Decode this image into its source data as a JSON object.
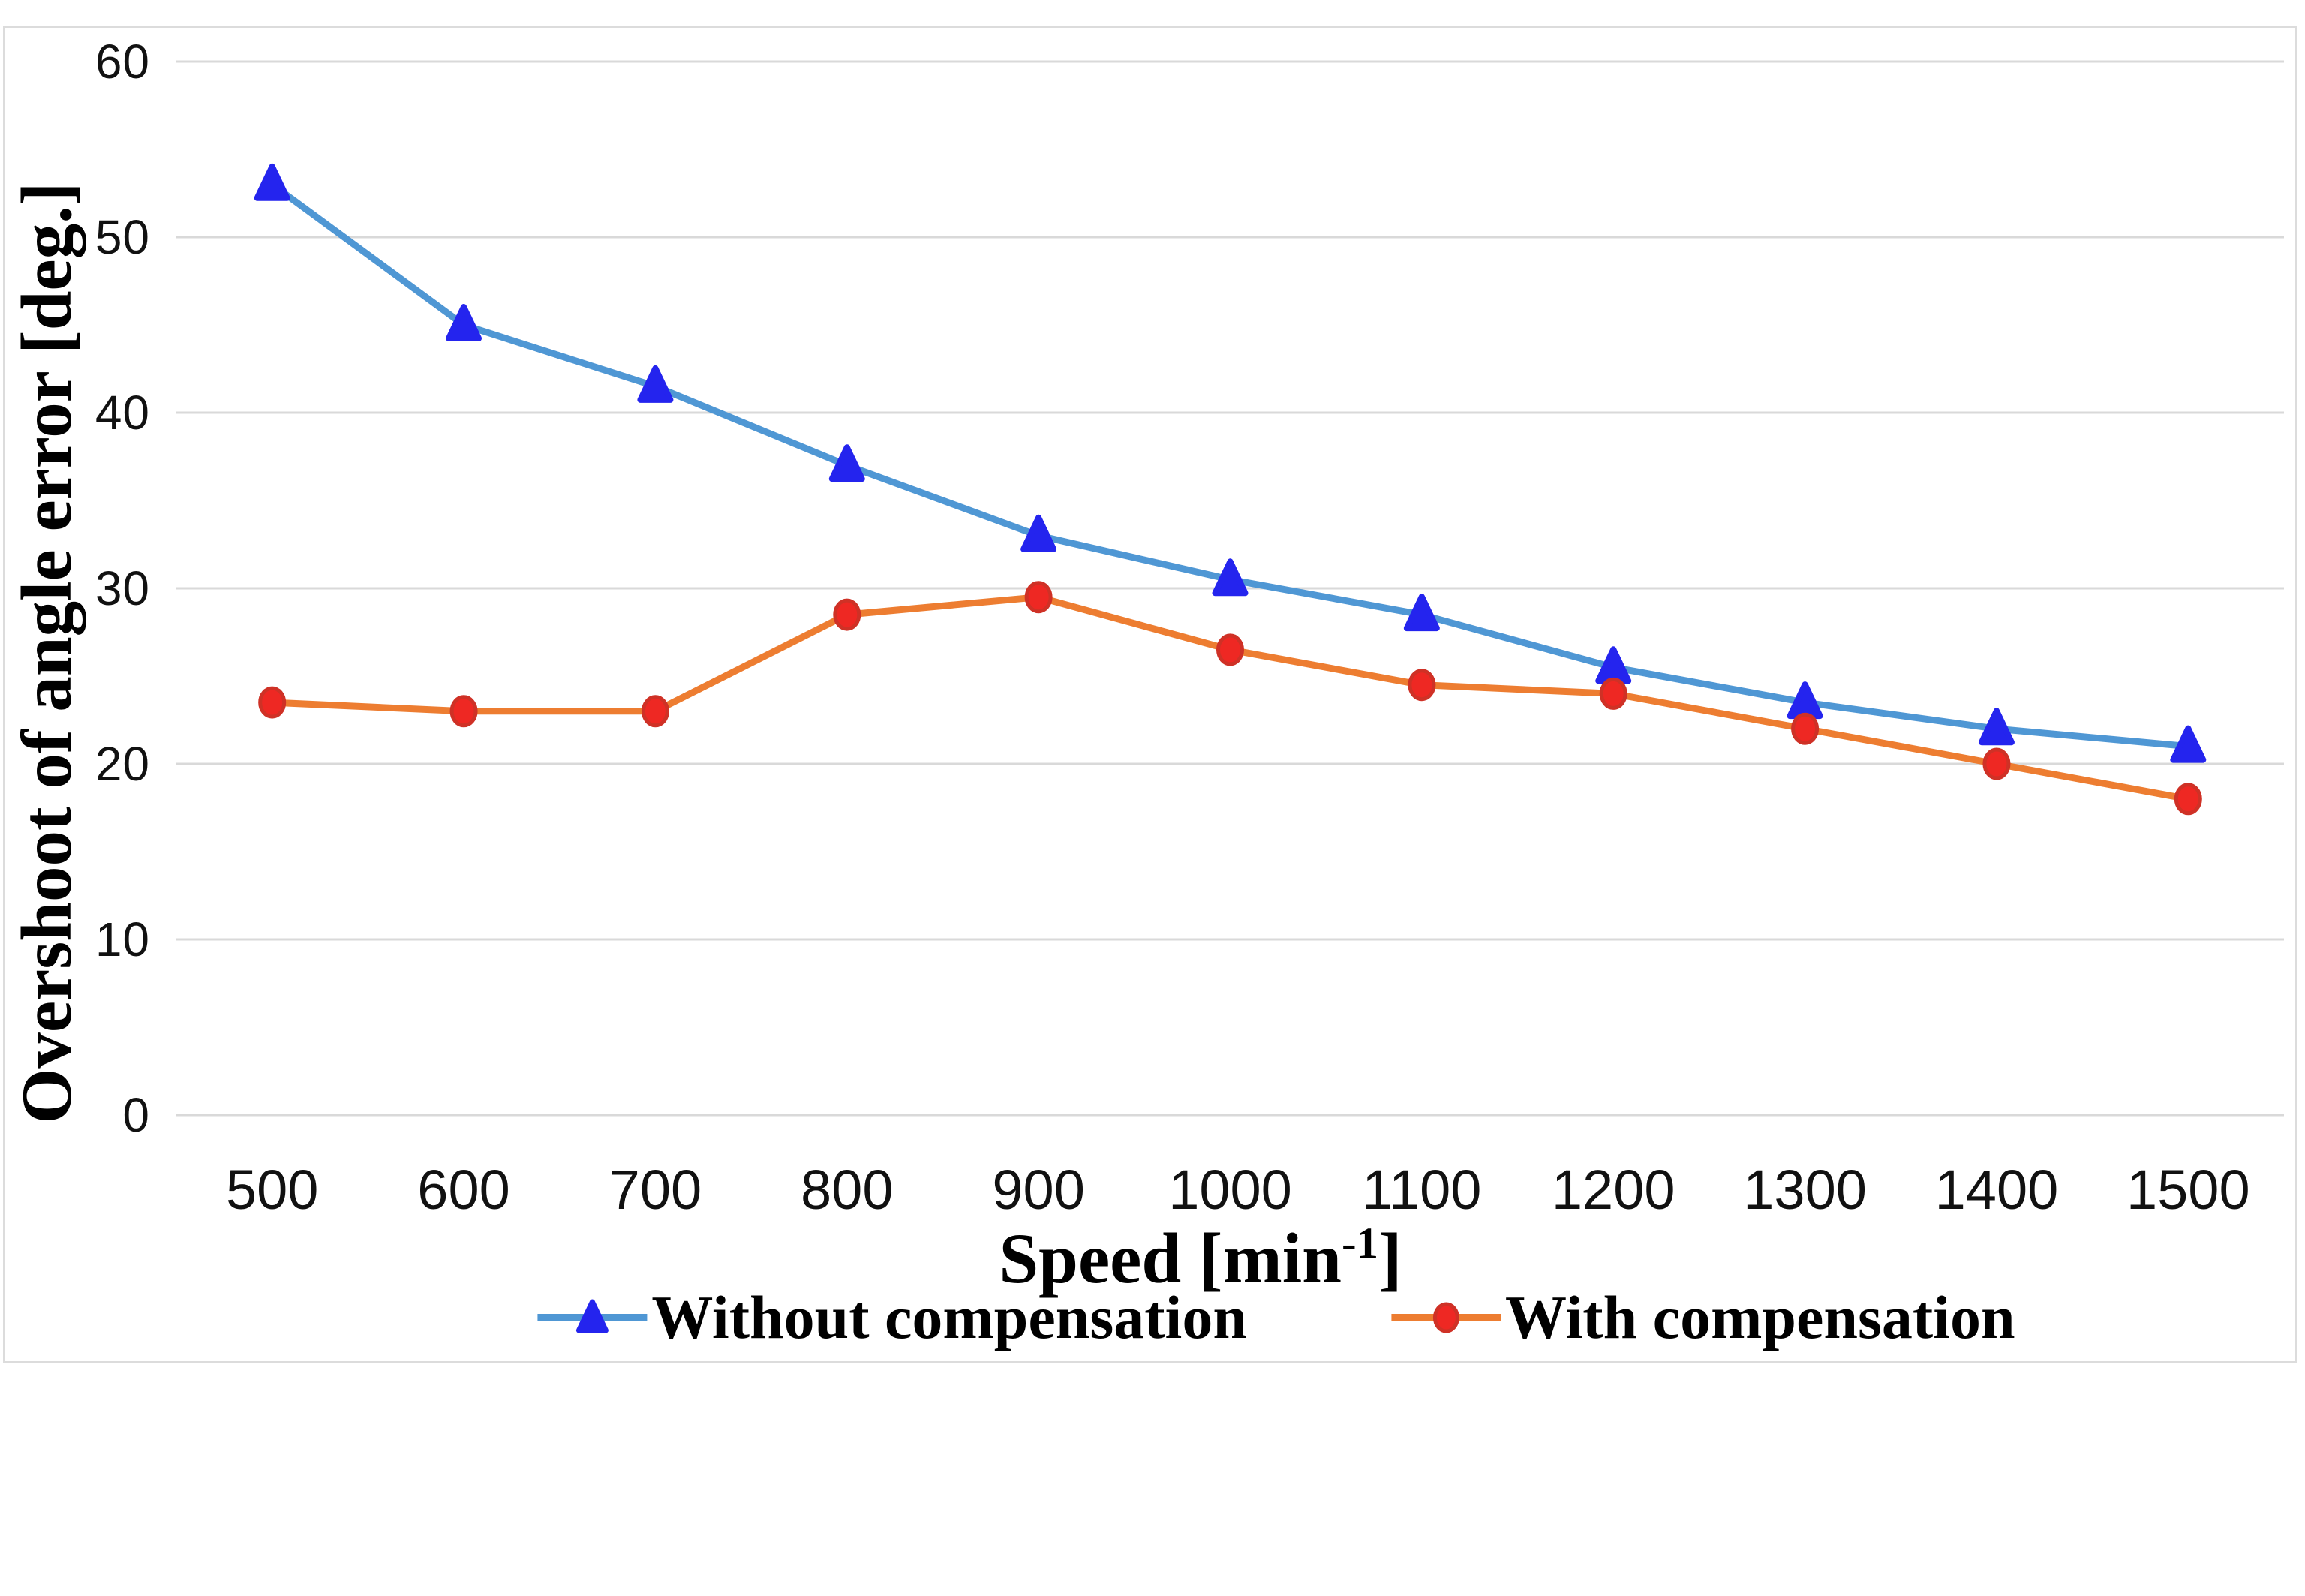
{
  "chart_data": {
    "type": "line",
    "categories": [
      "500",
      "600",
      "700",
      "800",
      "900",
      "1000",
      "1100",
      "1200",
      "1300",
      "1400",
      "1500"
    ],
    "series": [
      {
        "name": "Without compensation",
        "marker": "triangle",
        "marker_color": "#2424ee",
        "line_color": "#4f97d4",
        "values": [
          53,
          45,
          41.5,
          37,
          33,
          30.5,
          28.5,
          25.5,
          23.5,
          22,
          21
        ]
      },
      {
        "name": "With compensation",
        "marker": "circle",
        "marker_color": "#ee2823",
        "marker_edge_color": "#cf3126",
        "line_color": "#ed7d31",
        "values": [
          23.5,
          23,
          23,
          28.5,
          29.5,
          26.5,
          24.5,
          24,
          22,
          20,
          18
        ]
      }
    ],
    "title": "",
    "xlabel_pre": "Speed [min",
    "xlabel_sup": "-1",
    "xlabel_post": "]",
    "ylabel": "Overshoot of angle error [deg.]",
    "y_ticks": [
      0,
      10,
      20,
      30,
      40,
      50,
      60
    ],
    "ylim": [
      0,
      60
    ],
    "grid": "horizontal",
    "gridline_color": "#d9d9d9",
    "legend_position": "bottom"
  }
}
